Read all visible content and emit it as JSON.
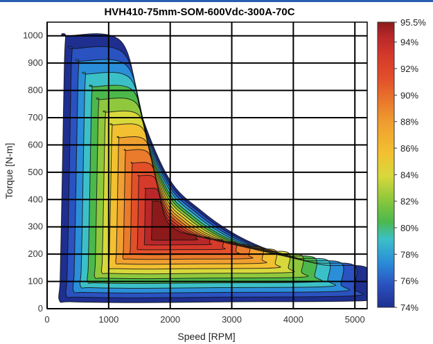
{
  "chart_data": {
    "type": "contour",
    "title": "HVH410-75mm-SOM-600Vdc-300A-70C",
    "xlabel": "Speed [RPM]",
    "ylabel": "Torque [N-m]",
    "xlim": [
      0,
      5200
    ],
    "ylim": [
      0,
      1050
    ],
    "x_ticks": [
      0,
      1000,
      2000,
      3000,
      4000,
      5000
    ],
    "y_ticks": [
      0,
      100,
      200,
      300,
      400,
      500,
      600,
      700,
      800,
      900,
      1000
    ],
    "grid": true,
    "colorbar": {
      "label_values": [
        95.5,
        94,
        92,
        90,
        88,
        86,
        84,
        82,
        80,
        78,
        76,
        74
      ],
      "labels": [
        "95.5%",
        "94%",
        "92%",
        "90%",
        "88%",
        "86%",
        "84%",
        "82%",
        "80%",
        "78%",
        "76%",
        "74%"
      ],
      "range": [
        74,
        95.5
      ],
      "colors": [
        "#1f2f8f",
        "#2a52c0",
        "#2a8fd8",
        "#3cc0c8",
        "#4cb84c",
        "#8fc83c",
        "#d8d83c",
        "#f2c030",
        "#f0a030",
        "#ea7a2c",
        "#e2502a",
        "#d63a2a",
        "#b8282a",
        "#8c1a1a"
      ]
    },
    "contour_peak": {
      "x": 1950,
      "y": 290,
      "value": 95.5
    },
    "region_upper_boundary": [
      {
        "x": 300,
        "y": 1000
      },
      {
        "x": 1200,
        "y": 980
      },
      {
        "x": 1550,
        "y": 700
      },
      {
        "x": 2000,
        "y": 470
      },
      {
        "x": 2500,
        "y": 360
      },
      {
        "x": 3000,
        "y": 280
      },
      {
        "x": 3500,
        "y": 225
      },
      {
        "x": 4000,
        "y": 190
      },
      {
        "x": 4500,
        "y": 160
      },
      {
        "x": 5200,
        "y": 150
      }
    ]
  }
}
